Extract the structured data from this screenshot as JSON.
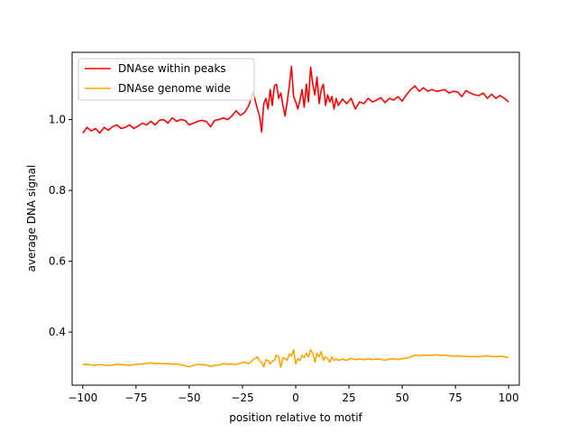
{
  "chart_data": {
    "type": "line",
    "xlabel": "position relative to motif",
    "ylabel": "average DNA signal",
    "xlim": [
      -105,
      105
    ],
    "ylim": [
      0.25,
      1.19
    ],
    "xticks": [
      -100,
      -75,
      -50,
      -25,
      0,
      25,
      50,
      75,
      100
    ],
    "xtick_labels": [
      "−100",
      "−75",
      "−50",
      "−25",
      "0",
      "25",
      "50",
      "75",
      "100"
    ],
    "yticks": [
      0.4,
      0.6,
      0.8,
      1.0
    ],
    "ytick_labels": [
      "0.4",
      "0.6",
      "0.8",
      "1.0"
    ],
    "grid": false,
    "legend_position": "top-left",
    "series": [
      {
        "name": "DNAse within peaks",
        "color": "#ff0000",
        "x": [
          -100,
          -98,
          -96,
          -94,
          -92,
          -90,
          -88,
          -86,
          -84,
          -82,
          -80,
          -78,
          -76,
          -74,
          -72,
          -70,
          -68,
          -66,
          -64,
          -62,
          -60,
          -58,
          -56,
          -54,
          -52,
          -50,
          -48,
          -46,
          -44,
          -42,
          -40,
          -38,
          -36,
          -34,
          -32,
          -30,
          -28,
          -26,
          -24,
          -22,
          -20,
          -18,
          -17,
          -16,
          -15,
          -14,
          -13,
          -12,
          -11,
          -10,
          -9,
          -8,
          -7,
          -6,
          -5,
          -4,
          -3,
          -2,
          -1,
          0,
          1,
          2,
          3,
          4,
          5,
          6,
          7,
          8,
          9,
          10,
          11,
          12,
          13,
          14,
          15,
          16,
          17,
          18,
          19,
          20,
          22,
          24,
          26,
          28,
          30,
          32,
          34,
          36,
          38,
          40,
          42,
          44,
          46,
          48,
          50,
          52,
          54,
          56,
          58,
          60,
          62,
          64,
          66,
          68,
          70,
          72,
          74,
          76,
          78,
          80,
          82,
          84,
          86,
          88,
          90,
          92,
          94,
          96,
          98,
          100
        ],
        "y": [
          0.962,
          0.978,
          0.968,
          0.975,
          0.962,
          0.978,
          0.97,
          0.98,
          0.985,
          0.975,
          0.978,
          0.985,
          0.975,
          0.982,
          0.99,
          0.985,
          0.995,
          0.985,
          0.998,
          1.0,
          0.99,
          1.005,
          0.995,
          1.0,
          0.998,
          0.985,
          0.99,
          0.995,
          0.998,
          0.995,
          0.98,
          0.998,
          1.0,
          1.005,
          1.0,
          1.01,
          1.025,
          1.012,
          1.02,
          1.04,
          1.078,
          1.03,
          1.01,
          0.965,
          1.045,
          1.06,
          1.03,
          1.085,
          1.04,
          1.095,
          1.1,
          1.06,
          1.075,
          1.04,
          1.01,
          1.05,
          1.095,
          1.15,
          1.065,
          1.05,
          1.03,
          1.055,
          1.085,
          1.035,
          1.1,
          1.05,
          1.148,
          1.1,
          1.07,
          1.12,
          1.045,
          1.085,
          1.1,
          1.04,
          1.07,
          1.05,
          1.065,
          1.03,
          1.06,
          1.04,
          1.058,
          1.045,
          1.06,
          1.03,
          1.05,
          1.045,
          1.06,
          1.05,
          1.055,
          1.062,
          1.048,
          1.06,
          1.055,
          1.065,
          1.052,
          1.07,
          1.085,
          1.095,
          1.08,
          1.09,
          1.08,
          1.085,
          1.08,
          1.082,
          1.085,
          1.075,
          1.08,
          1.078,
          1.065,
          1.082,
          1.075,
          1.07,
          1.068,
          1.075,
          1.06,
          1.072,
          1.06,
          1.068,
          1.06,
          1.05
        ]
      },
      {
        "name": "DNAse genome wide",
        "color": "#ffa500",
        "x": [
          -100,
          -98,
          -96,
          -94,
          -92,
          -90,
          -88,
          -86,
          -84,
          -82,
          -80,
          -78,
          -76,
          -74,
          -72,
          -70,
          -68,
          -66,
          -64,
          -62,
          -60,
          -58,
          -56,
          -54,
          -52,
          -50,
          -48,
          -46,
          -44,
          -42,
          -40,
          -38,
          -36,
          -34,
          -32,
          -30,
          -28,
          -26,
          -24,
          -22,
          -20,
          -18,
          -17,
          -16,
          -15,
          -14,
          -13,
          -12,
          -11,
          -10,
          -9,
          -8,
          -7,
          -6,
          -5,
          -4,
          -3,
          -2,
          -1,
          0,
          1,
          2,
          3,
          4,
          5,
          6,
          7,
          8,
          9,
          10,
          11,
          12,
          13,
          14,
          15,
          16,
          17,
          18,
          19,
          20,
          22,
          24,
          26,
          28,
          30,
          32,
          34,
          36,
          38,
          40,
          42,
          44,
          46,
          48,
          50,
          52,
          54,
          56,
          58,
          60,
          62,
          64,
          66,
          68,
          70,
          72,
          74,
          76,
          78,
          80,
          82,
          84,
          86,
          88,
          90,
          92,
          94,
          96,
          98,
          100
        ],
        "y": [
          0.308,
          0.309,
          0.307,
          0.306,
          0.308,
          0.307,
          0.306,
          0.307,
          0.309,
          0.308,
          0.307,
          0.306,
          0.308,
          0.309,
          0.31,
          0.312,
          0.313,
          0.311,
          0.312,
          0.31,
          0.311,
          0.309,
          0.31,
          0.308,
          0.305,
          0.302,
          0.306,
          0.309,
          0.308,
          0.307,
          0.303,
          0.306,
          0.307,
          0.311,
          0.309,
          0.31,
          0.308,
          0.312,
          0.315,
          0.311,
          0.322,
          0.33,
          0.318,
          0.315,
          0.302,
          0.322,
          0.32,
          0.31,
          0.318,
          0.32,
          0.335,
          0.33,
          0.3,
          0.328,
          0.325,
          0.32,
          0.338,
          0.332,
          0.35,
          0.31,
          0.325,
          0.32,
          0.335,
          0.328,
          0.34,
          0.33,
          0.35,
          0.34,
          0.315,
          0.34,
          0.33,
          0.345,
          0.32,
          0.33,
          0.325,
          0.315,
          0.33,
          0.32,
          0.325,
          0.32,
          0.324,
          0.32,
          0.326,
          0.322,
          0.324,
          0.322,
          0.325,
          0.322,
          0.324,
          0.323,
          0.32,
          0.324,
          0.325,
          0.322,
          0.325,
          0.326,
          0.33,
          0.335,
          0.333,
          0.335,
          0.334,
          0.335,
          0.336,
          0.334,
          0.335,
          0.333,
          0.332,
          0.333,
          0.331,
          0.332,
          0.33,
          0.331,
          0.33,
          0.332,
          0.333,
          0.331,
          0.33,
          0.332,
          0.33,
          0.328
        ]
      }
    ]
  }
}
